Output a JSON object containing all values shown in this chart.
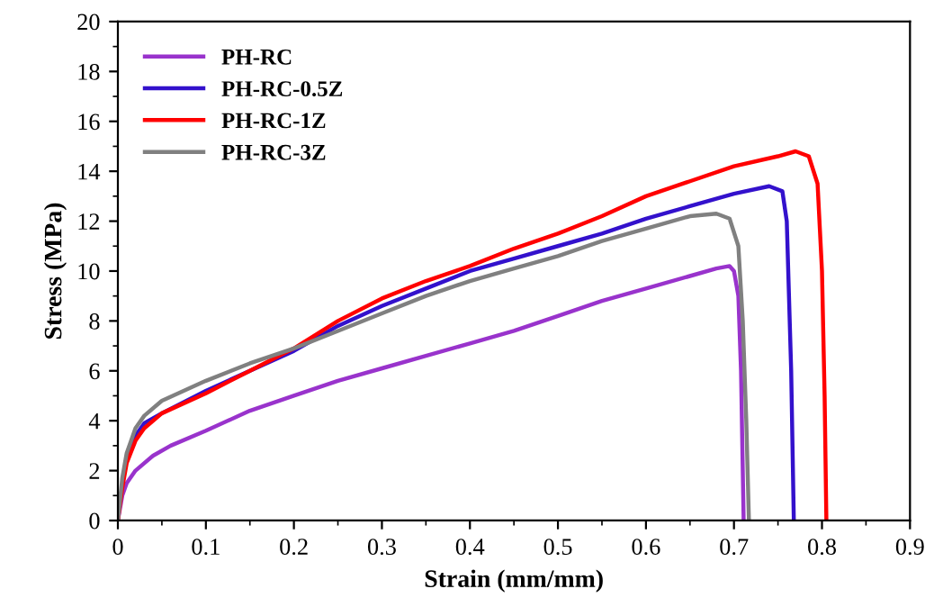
{
  "chart_data": {
    "type": "line",
    "xlabel": "Strain (mm/mm)",
    "ylabel": "Stress (MPa)",
    "xlim": [
      0,
      0.9
    ],
    "ylim": [
      0,
      20
    ],
    "xticks": [
      0,
      0.1,
      0.2,
      0.3,
      0.4,
      0.5,
      0.6,
      0.7,
      0.8,
      0.9
    ],
    "yticks": [
      0,
      2,
      4,
      6,
      8,
      10,
      12,
      14,
      16,
      18,
      20
    ],
    "grid": false,
    "legend": "top left",
    "marker": "none",
    "line_style": "solid",
    "series": [
      {
        "name": "PH-RC",
        "color": "#9933cc",
        "x": [
          0,
          0.005,
          0.01,
          0.02,
          0.04,
          0.06,
          0.1,
          0.15,
          0.2,
          0.25,
          0.3,
          0.35,
          0.4,
          0.45,
          0.5,
          0.55,
          0.6,
          0.65,
          0.68,
          0.695,
          0.7,
          0.705,
          0.708,
          0.71,
          0.711
        ],
        "values": [
          0,
          1.0,
          1.5,
          2.0,
          2.6,
          3.0,
          3.6,
          4.4,
          5.0,
          5.6,
          6.1,
          6.6,
          7.1,
          7.6,
          8.2,
          8.8,
          9.3,
          9.8,
          10.1,
          10.2,
          10.0,
          9.0,
          6,
          2,
          0
        ]
      },
      {
        "name": "PH-RC-0.5Z",
        "color": "#3311cc",
        "x": [
          0.01,
          0.02,
          0.03,
          0.05,
          0.1,
          0.15,
          0.2,
          0.25,
          0.3,
          0.35,
          0.4,
          0.45,
          0.5,
          0.55,
          0.6,
          0.65,
          0.7,
          0.74,
          0.755,
          0.76,
          0.765,
          0.768
        ],
        "values": [
          2.5,
          3.4,
          3.9,
          4.3,
          5.2,
          6.0,
          6.8,
          7.8,
          8.6,
          9.3,
          10.0,
          10.5,
          11.0,
          11.5,
          12.1,
          12.6,
          13.1,
          13.4,
          13.2,
          12.0,
          6,
          0
        ]
      },
      {
        "name": "PH-RC-1Z",
        "color": "#ff0000",
        "x": [
          0,
          0.005,
          0.01,
          0.02,
          0.03,
          0.05,
          0.1,
          0.15,
          0.2,
          0.25,
          0.3,
          0.35,
          0.4,
          0.45,
          0.5,
          0.55,
          0.6,
          0.65,
          0.7,
          0.75,
          0.77,
          0.785,
          0.795,
          0.8,
          0.803,
          0.805
        ],
        "values": [
          0,
          1.3,
          2.3,
          3.2,
          3.7,
          4.3,
          5.1,
          6.0,
          6.9,
          8.0,
          8.9,
          9.6,
          10.2,
          10.9,
          11.5,
          12.2,
          13.0,
          13.6,
          14.2,
          14.6,
          14.8,
          14.6,
          13.5,
          10,
          5,
          0
        ]
      },
      {
        "name": "PH-RC-3Z",
        "color": "#808080",
        "x": [
          0,
          0.005,
          0.01,
          0.02,
          0.03,
          0.05,
          0.1,
          0.15,
          0.2,
          0.25,
          0.3,
          0.35,
          0.4,
          0.45,
          0.5,
          0.55,
          0.6,
          0.65,
          0.68,
          0.695,
          0.705,
          0.71,
          0.714,
          0.717
        ],
        "values": [
          0,
          1.7,
          2.7,
          3.7,
          4.2,
          4.8,
          5.6,
          6.3,
          6.9,
          7.6,
          8.3,
          9.0,
          9.6,
          10.1,
          10.6,
          11.2,
          11.7,
          12.2,
          12.3,
          12.1,
          11.0,
          8,
          4,
          0
        ]
      }
    ]
  }
}
